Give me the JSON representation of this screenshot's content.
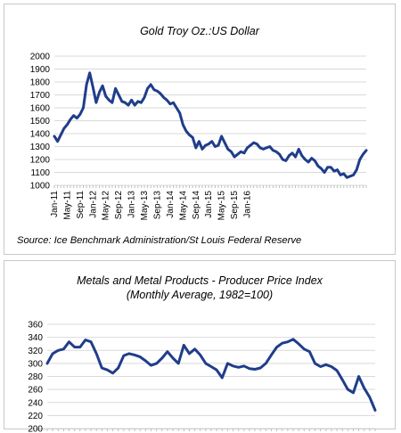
{
  "chart_data": [
    {
      "type": "line",
      "title": "Gold Troy Oz.:US Dollar",
      "source": "Source: Ice Benchmark Administration/St Louis Federal Reserve",
      "ylim": [
        1000,
        2000
      ],
      "yticks": [
        1000,
        1100,
        1200,
        1300,
        1400,
        1500,
        1600,
        1700,
        1800,
        1900,
        2000
      ],
      "xtick_labels": [
        "Jan-11",
        "May-11",
        "Sep-11",
        "Jan-12",
        "May-12",
        "Sep-12",
        "Jan-13",
        "May-13",
        "Sep-13",
        "Jan-14",
        "May-14",
        "Sep-14",
        "Jan-15",
        "May-15",
        "Sep-15",
        "Jan-16"
      ],
      "grid": true,
      "color": "#1f3d8a",
      "series": [
        {
          "values": [
            1380,
            1340,
            1390,
            1440,
            1470,
            1510,
            1540,
            1520,
            1550,
            1600,
            1780,
            1870,
            1760,
            1640,
            1720,
            1770,
            1690,
            1660,
            1640,
            1750,
            1700,
            1650,
            1640,
            1620,
            1660,
            1620,
            1650,
            1640,
            1680,
            1750,
            1780,
            1740,
            1730,
            1710,
            1680,
            1660,
            1630,
            1640,
            1600,
            1560,
            1470,
            1420,
            1390,
            1370,
            1290,
            1340,
            1280,
            1310,
            1320,
            1340,
            1300,
            1310,
            1380,
            1330,
            1280,
            1260,
            1220,
            1240,
            1260,
            1250,
            1290,
            1310,
            1330,
            1320,
            1290,
            1280,
            1290,
            1300,
            1270,
            1260,
            1240,
            1200,
            1190,
            1230,
            1250,
            1220,
            1280,
            1230,
            1200,
            1180,
            1210,
            1190,
            1150,
            1130,
            1100,
            1140,
            1140,
            1110,
            1120,
            1080,
            1090,
            1060,
            1070,
            1080,
            1120,
            1200,
            1240,
            1270
          ]
        }
      ]
    },
    {
      "type": "line",
      "title": "Metals and Metal Products - Producer Price Index (Monthly Average, 1982=100)",
      "ylim": [
        200,
        360
      ],
      "yticks": [
        200,
        220,
        240,
        260,
        280,
        300,
        320,
        340,
        360
      ],
      "grid": true,
      "color": "#1f3d8a",
      "series": [
        {
          "values": [
            300,
            315,
            320,
            322,
            333,
            325,
            325,
            336,
            333,
            315,
            293,
            290,
            285,
            293,
            312,
            315,
            313,
            310,
            304,
            297,
            300,
            308,
            318,
            308,
            300,
            328,
            315,
            322,
            313,
            300,
            295,
            290,
            278,
            300,
            296,
            294,
            296,
            292,
            291,
            293,
            300,
            313,
            325,
            331,
            333,
            337,
            330,
            322,
            318,
            300,
            295,
            298,
            295,
            289,
            275,
            260,
            255,
            280,
            262,
            248,
            228
          ]
        }
      ]
    }
  ]
}
